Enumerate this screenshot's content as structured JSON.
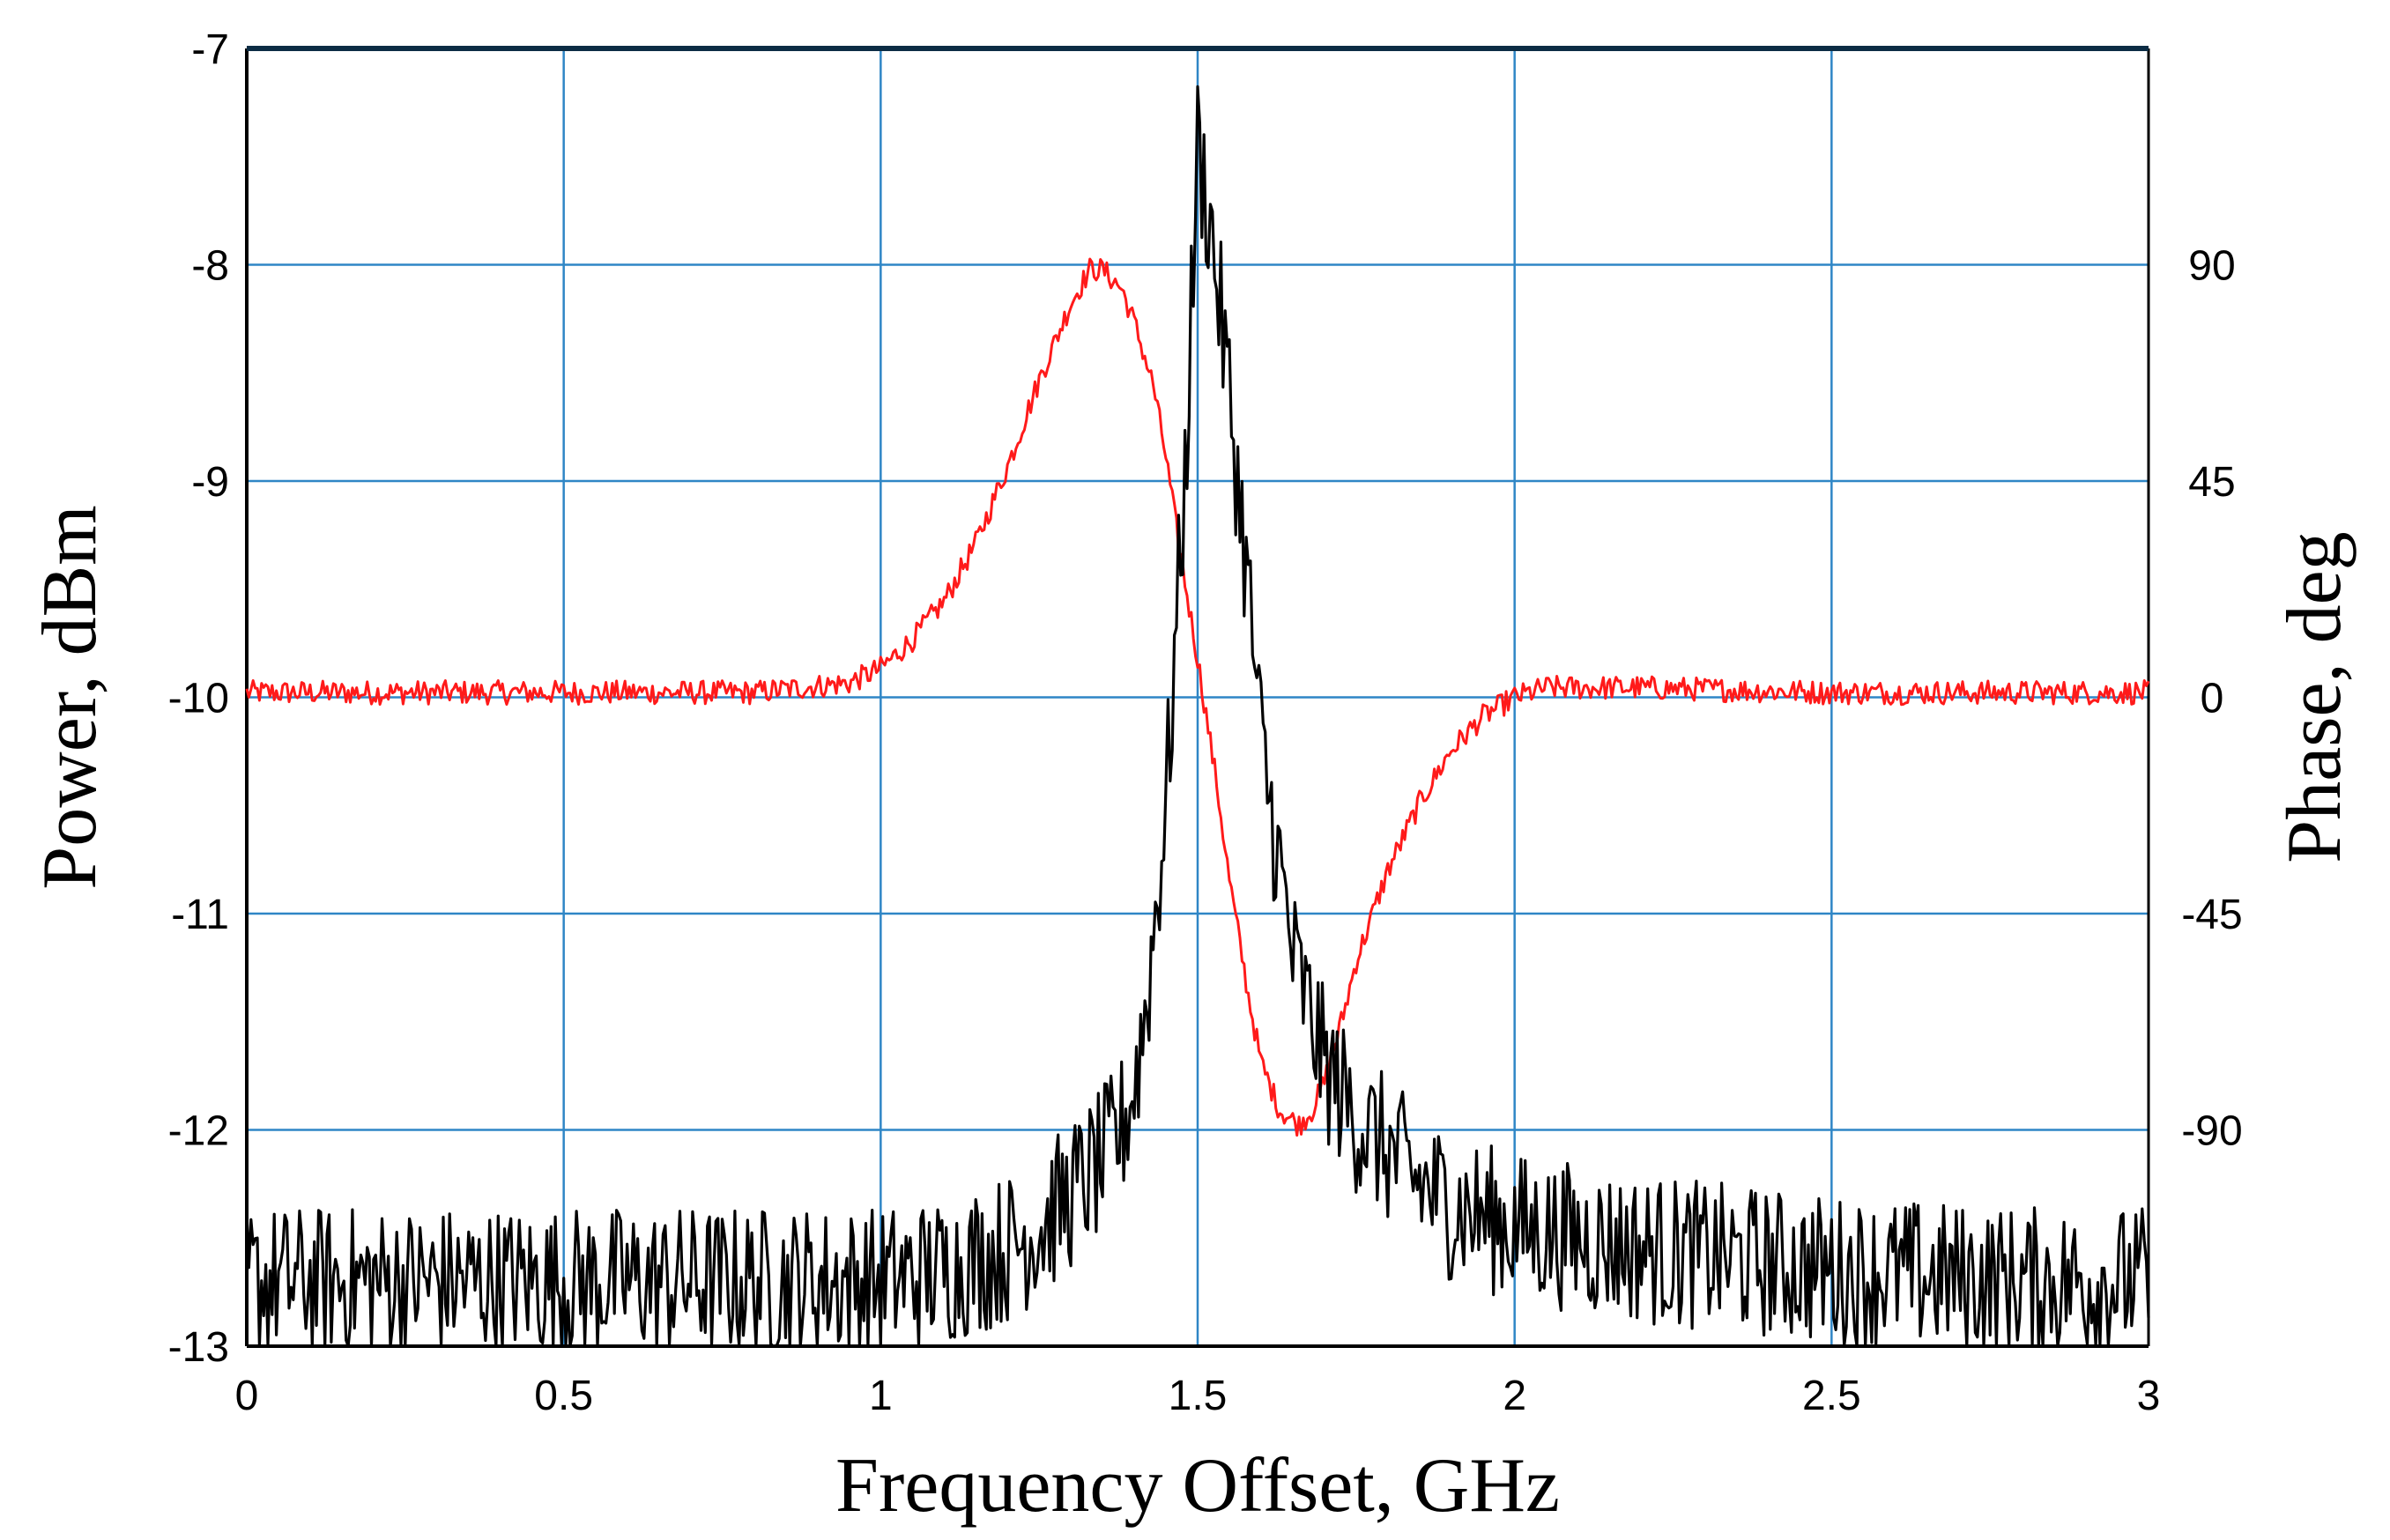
{
  "chart_data": {
    "type": "line",
    "title": "",
    "xlabel": "Frequency Offset, GHz",
    "ylabel": "Power, dBm",
    "y2label": "Phase, deg",
    "xlim": [
      0,
      3
    ],
    "ylim": [
      -13,
      -7
    ],
    "y2lim": [
      -135,
      135
    ],
    "xticks": [
      0,
      0.5,
      1,
      1.5,
      2,
      2.5,
      3
    ],
    "xtick_labels": [
      "0",
      "0.5",
      "1",
      "1.5",
      "2",
      "2.5",
      "3"
    ],
    "yticks": [
      -13,
      -12,
      -11,
      -10,
      -9,
      -8,
      -7
    ],
    "ytick_labels": [
      "-13",
      "-12",
      "-11",
      "-10",
      "-9",
      "-8",
      "-7"
    ],
    "y2ticks": [
      -90,
      -45,
      0,
      45,
      90
    ],
    "y2tick_labels": [
      "-90",
      "-45",
      "0",
      "45",
      "90"
    ],
    "grid": true,
    "colors": {
      "grid": "#2f86c6",
      "frame": "#000000",
      "top_border": "#0c2c44",
      "power": "#000000",
      "phase": "#ff1a1a"
    },
    "series": [
      {
        "name": "Power",
        "axis": "left",
        "color": "#000000",
        "x": [
          0,
          0.2,
          0.4,
          0.6,
          0.8,
          0.9,
          1.0,
          1.1,
          1.2,
          1.25,
          1.3,
          1.35,
          1.38,
          1.4,
          1.42,
          1.45,
          1.48,
          1.5,
          1.52,
          1.55,
          1.58,
          1.6,
          1.63,
          1.65,
          1.68,
          1.7,
          1.75,
          1.8,
          1.85,
          1.9,
          2.0,
          2.2,
          2.5,
          2.8,
          3.0
        ],
        "y": [
          -12.7,
          -12.7,
          -12.7,
          -12.7,
          -12.7,
          -12.7,
          -12.7,
          -12.65,
          -12.55,
          -12.45,
          -12.3,
          -12.15,
          -12.0,
          -11.8,
          -11.4,
          -10.5,
          -9.0,
          -7.45,
          -7.8,
          -8.6,
          -9.5,
          -10.2,
          -10.8,
          -11.2,
          -11.5,
          -11.7,
          -11.95,
          -12.1,
          -12.25,
          -12.35,
          -12.45,
          -12.55,
          -12.65,
          -12.7,
          -12.7
        ]
      },
      {
        "name": "Phase",
        "axis": "right",
        "color": "#ff1a1a",
        "x": [
          0,
          0.2,
          0.4,
          0.6,
          0.8,
          0.95,
          1.0,
          1.05,
          1.1,
          1.15,
          1.2,
          1.25,
          1.3,
          1.33,
          1.35,
          1.38,
          1.4,
          1.43,
          1.45,
          1.47,
          1.5,
          1.53,
          1.55,
          1.58,
          1.6,
          1.63,
          1.66,
          1.68,
          1.7,
          1.73,
          1.75,
          1.8,
          1.85,
          1.9,
          1.95,
          2.0,
          2.05,
          2.1,
          2.2,
          2.5,
          2.8,
          3.0
        ],
        "y": [
          1,
          1,
          1,
          1,
          1,
          3,
          6,
          12,
          20,
          32,
          48,
          66,
          82,
          89,
          89,
          85,
          78,
          65,
          50,
          32,
          8,
          -18,
          -38,
          -62,
          -76,
          -86,
          -89,
          -86,
          -80,
          -66,
          -55,
          -36,
          -22,
          -11,
          -4,
          0,
          2,
          2,
          2,
          1,
          1,
          1
        ]
      }
    ]
  }
}
